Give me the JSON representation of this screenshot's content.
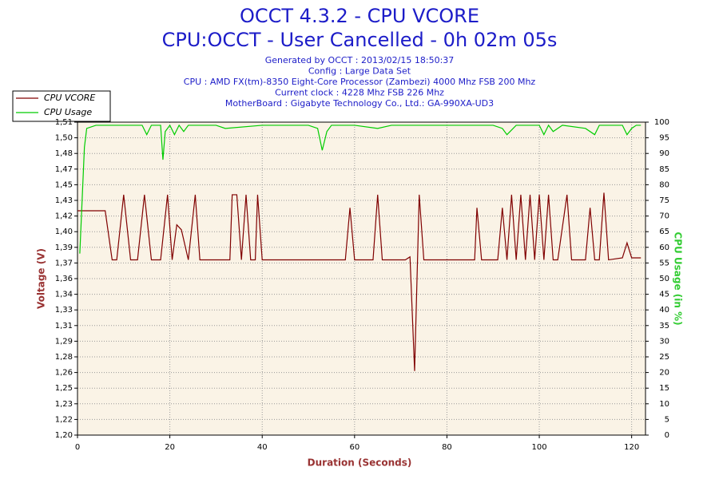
{
  "chart_data": {
    "type": "line",
    "title": "OCCT 4.3.2 - CPU VCORE",
    "subtitle": "CPU:OCCT - User Cancelled - 0h 02m 05s",
    "info": [
      "Generated by OCCT : 2013/02/15 18:50:37",
      "Config : Large Data Set",
      "CPU : AMD FX(tm)-8350 Eight-Core Processor (Zambezi) 4000 Mhz FSB 200 Mhz",
      "Current clock : 4228 Mhz FSB 226 Mhz",
      "MotherBoard : Gigabyte Technology Co., Ltd.: GA-990XA-UD3"
    ],
    "x_label": "Duration (Seconds)",
    "y_label": "Voltage (V)",
    "y2_label": "CPU Usage (in %)",
    "xlim": [
      0,
      123
    ],
    "xticks": [
      0,
      20,
      40,
      60,
      80,
      100,
      120
    ],
    "ylim": [
      1.2,
      1.5125
    ],
    "yticks": [
      {
        "value": 1.2,
        "label": "1,20"
      },
      {
        "value": 1.215625,
        "label": "1,22"
      },
      {
        "value": 1.23125,
        "label": "1,23"
      },
      {
        "value": 1.246875,
        "label": "1,25"
      },
      {
        "value": 1.2625,
        "label": "1,26"
      },
      {
        "value": 1.278125,
        "label": "1,28"
      },
      {
        "value": 1.29375,
        "label": "1,29"
      },
      {
        "value": 1.309375,
        "label": "1,31"
      },
      {
        "value": 1.325,
        "label": "1,33"
      },
      {
        "value": 1.340625,
        "label": "1,34"
      },
      {
        "value": 1.35625,
        "label": "1,36"
      },
      {
        "value": 1.371875,
        "label": "1,37"
      },
      {
        "value": 1.3875,
        "label": "1,39"
      },
      {
        "value": 1.403125,
        "label": "1,40"
      },
      {
        "value": 1.41875,
        "label": "1,42"
      },
      {
        "value": 1.434375,
        "label": "1,43"
      },
      {
        "value": 1.45,
        "label": "1,45"
      },
      {
        "value": 1.465625,
        "label": "1,47"
      },
      {
        "value": 1.48125,
        "label": "1,48"
      },
      {
        "value": 1.496875,
        "label": "1,50"
      },
      {
        "value": 1.5125,
        "label": "1,51"
      }
    ],
    "y2lim": [
      0,
      100
    ],
    "y2ticks": [
      0,
      5,
      10,
      15,
      20,
      25,
      30,
      35,
      40,
      45,
      50,
      55,
      60,
      65,
      70,
      75,
      80,
      85,
      90,
      95,
      100
    ],
    "grid": true,
    "legend": "top-left",
    "series": [
      {
        "name": "CPU VCORE",
        "color": "#800000",
        "x": [
          0,
          6,
          7.5,
          8.5,
          10,
          11.5,
          13,
          14.5,
          16,
          18,
          19.5,
          20.5,
          21.5,
          22.5,
          24,
          25.5,
          26.5,
          33,
          33.5,
          34.5,
          35.5,
          36.5,
          37.5,
          38.5,
          39,
          40,
          58,
          59,
          60,
          61,
          64,
          65,
          66,
          71,
          72,
          73,
          74,
          75,
          86,
          86.5,
          87.5,
          91,
          92,
          93,
          94,
          95,
          96,
          97,
          98,
          99,
          100,
          101,
          102,
          103,
          104,
          106,
          107,
          110,
          111,
          112,
          113,
          114,
          115,
          118,
          119,
          120,
          122
        ],
        "values": [
          1.424,
          1.424,
          1.375,
          1.375,
          1.44,
          1.375,
          1.375,
          1.44,
          1.375,
          1.375,
          1.44,
          1.375,
          1.41,
          1.405,
          1.375,
          1.44,
          1.375,
          1.375,
          1.44,
          1.44,
          1.375,
          1.44,
          1.375,
          1.375,
          1.44,
          1.375,
          1.375,
          1.427,
          1.375,
          1.375,
          1.375,
          1.44,
          1.375,
          1.375,
          1.378,
          1.264,
          1.44,
          1.375,
          1.375,
          1.427,
          1.375,
          1.375,
          1.427,
          1.375,
          1.44,
          1.375,
          1.44,
          1.375,
          1.44,
          1.375,
          1.44,
          1.375,
          1.44,
          1.375,
          1.375,
          1.44,
          1.375,
          1.375,
          1.427,
          1.375,
          1.375,
          1.442,
          1.375,
          1.377,
          1.392,
          1.377,
          1.377
        ]
      },
      {
        "name": "CPU Usage",
        "color": "#00cc00",
        "axis": "y2",
        "x": [
          0.5,
          1,
          1.5,
          2,
          4,
          14,
          15,
          16,
          17,
          18,
          18.5,
          19,
          20,
          21,
          22,
          23,
          24,
          30,
          32,
          40,
          50,
          52,
          53,
          54,
          55,
          60,
          65,
          68,
          70,
          75,
          80,
          90,
          92,
          93,
          95,
          100,
          101,
          102,
          103,
          105,
          110,
          112,
          113,
          115,
          118,
          119,
          120,
          121,
          122
        ],
        "values": [
          58,
          75,
          92,
          98,
          99,
          99,
          96,
          99,
          99,
          99,
          88,
          97,
          99,
          96,
          99,
          97,
          99,
          99,
          98,
          99,
          99,
          98,
          91,
          97,
          99,
          99,
          98,
          99,
          99,
          99,
          99,
          99,
          98,
          96,
          99,
          99,
          96,
          99,
          97,
          99,
          98,
          96,
          99,
          99,
          99,
          96,
          98,
          99,
          99
        ]
      }
    ]
  }
}
